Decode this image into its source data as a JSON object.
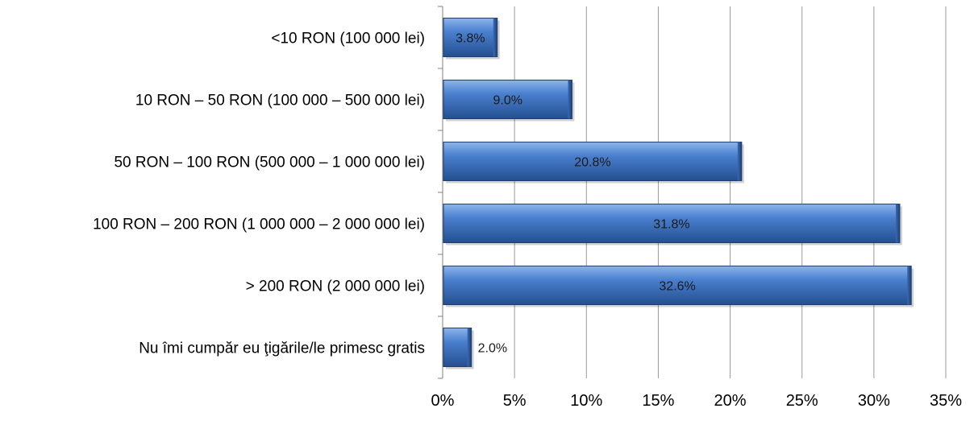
{
  "chart_data": {
    "type": "bar",
    "orientation": "horizontal",
    "categories": [
      "<10 RON (100 000 lei)",
      "10 RON – 50 RON (100 000 – 500 000 lei)",
      "50 RON – 100 RON (500 000 – 1 000 000 lei)",
      "100 RON – 200 RON (1 000 000 – 2 000 000 lei)",
      "> 200 RON (2 000 000 lei)",
      "Nu îmi cumpăr eu ţigările/le primesc gratis"
    ],
    "values": [
      3.8,
      9.0,
      20.8,
      31.8,
      32.6,
      2.0
    ],
    "data_labels": [
      "3.8%",
      "9.0%",
      "20.8%",
      "31.8%",
      "32.6%",
      "2.0%"
    ],
    "xlim": [
      0,
      35
    ],
    "xticks": [
      0,
      5,
      10,
      15,
      20,
      25,
      30,
      35
    ],
    "xtick_labels": [
      "0%",
      "5%",
      "10%",
      "15%",
      "20%",
      "25%",
      "30%",
      "35%"
    ],
    "title": "",
    "xlabel": "",
    "ylabel": "",
    "grid": "vertical",
    "legend": "none",
    "colors": {
      "bar_fill_light": "#6f9fe0",
      "bar_fill_mid": "#3f73c4",
      "bar_fill_dark": "#244f8f",
      "bar_stroke": "#1f3f73",
      "grid": "#9a9a9a",
      "axis": "#808080"
    }
  }
}
